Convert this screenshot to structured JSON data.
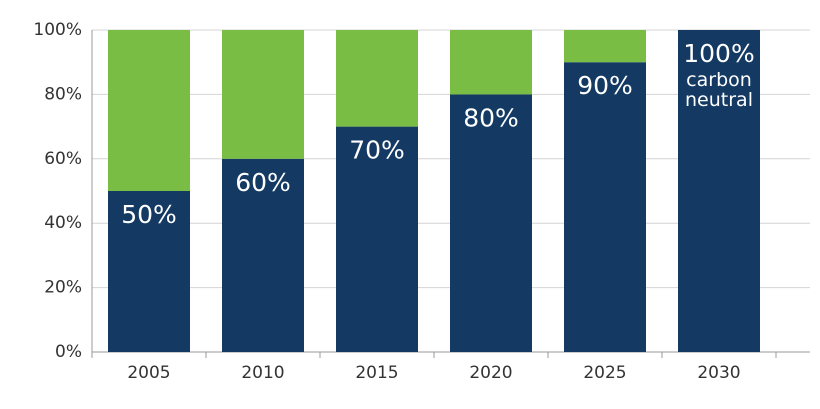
{
  "chart_data": {
    "type": "stacked_bar",
    "categories": [
      "2005",
      "2010",
      "2015",
      "2020",
      "2025",
      "2030"
    ],
    "series": [
      {
        "color": "#143a64",
        "values": [
          50,
          60,
          70,
          80,
          90,
          100
        ],
        "value_labels": [
          "50%",
          "60%",
          "70%",
          "80%",
          "90%",
          "100%"
        ]
      },
      {
        "color": "#7abd45",
        "values": [
          50,
          40,
          30,
          20,
          10,
          0
        ]
      }
    ],
    "annotation": "carbon neutral",
    "ylim": [
      0,
      100
    ],
    "yticks": [
      {
        "value": 0,
        "label": "0%"
      },
      {
        "value": 20,
        "label": "20%"
      },
      {
        "value": 40,
        "label": "40%"
      },
      {
        "value": 60,
        "label": "60%"
      },
      {
        "value": 80,
        "label": "80%"
      },
      {
        "value": 100,
        "label": "100%"
      }
    ],
    "grid": true
  }
}
